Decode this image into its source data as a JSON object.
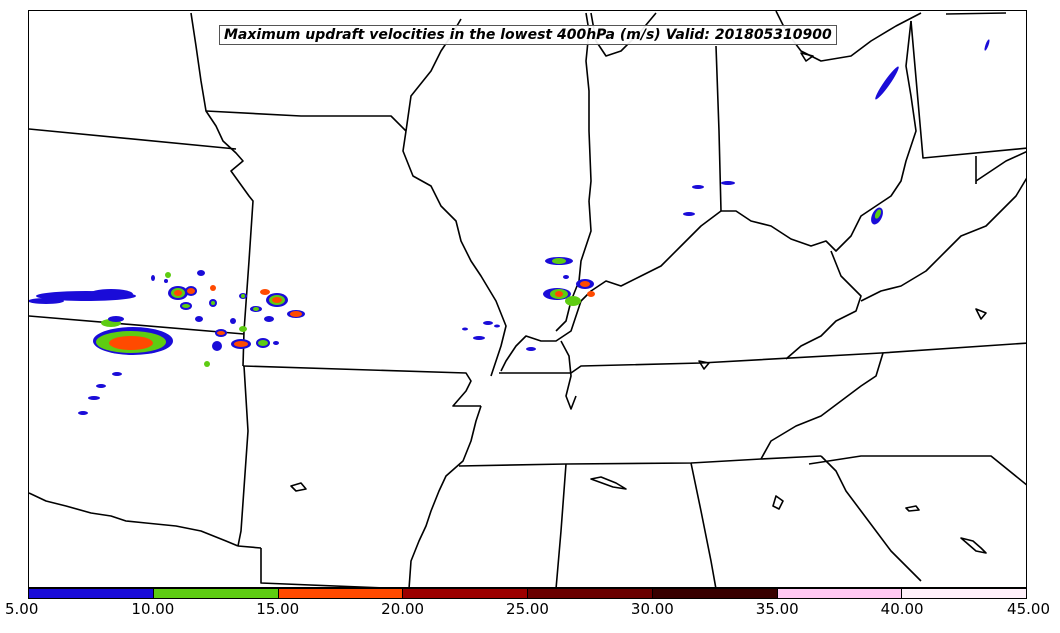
{
  "title": "Maximum updraft velocities in the lowest 400hPa (m/s) Valid: 201805310900",
  "colorbar": {
    "levels": [
      "5.00",
      "10.00",
      "15.00",
      "20.00",
      "25.00",
      "30.00",
      "35.00",
      "40.00",
      "45.00"
    ],
    "colors": [
      "#1a0cd8",
      "#5ecc12",
      "#ff4a00",
      "#9c0000",
      "#6a0000",
      "#380000",
      "#ffc8f2",
      "#fff0fa"
    ]
  },
  "map": {
    "border_color": "#000000",
    "background": "#ffffff"
  }
}
